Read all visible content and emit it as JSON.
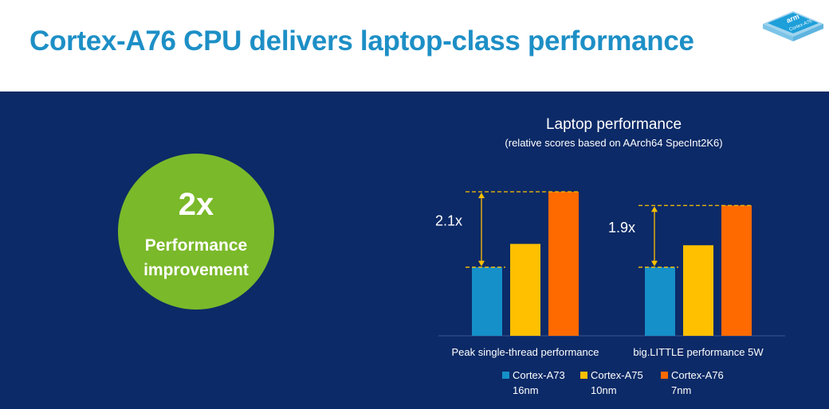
{
  "title": "Cortex-A76 CPU delivers laptop-class performance",
  "logo": {
    "brand": "arm",
    "product": "Cortex-A76"
  },
  "highlight": {
    "value": "2x",
    "line1": "Performance",
    "line2": "improvement"
  },
  "chart_data": {
    "type": "bar",
    "title": "Laptop performance",
    "subtitle": "(relative scores based on AArch64 SpecInt2K6)",
    "categories": [
      "Peak single-thread performance",
      "big.LITTLE performance 5W"
    ],
    "series": [
      {
        "name": "Cortex-A73",
        "node": "16nm",
        "color": "#1590c8",
        "values": [
          1.0,
          1.0
        ]
      },
      {
        "name": "Cortex-A75",
        "node": "10nm",
        "color": "#ffc000",
        "values": [
          1.34,
          1.32
        ]
      },
      {
        "name": "Cortex-A76",
        "node": "7nm",
        "color": "#ff6a00",
        "values": [
          2.1,
          1.9
        ]
      }
    ],
    "annotations": [
      "2.1x",
      "1.9x"
    ],
    "ylim": [
      0,
      2.1
    ]
  }
}
